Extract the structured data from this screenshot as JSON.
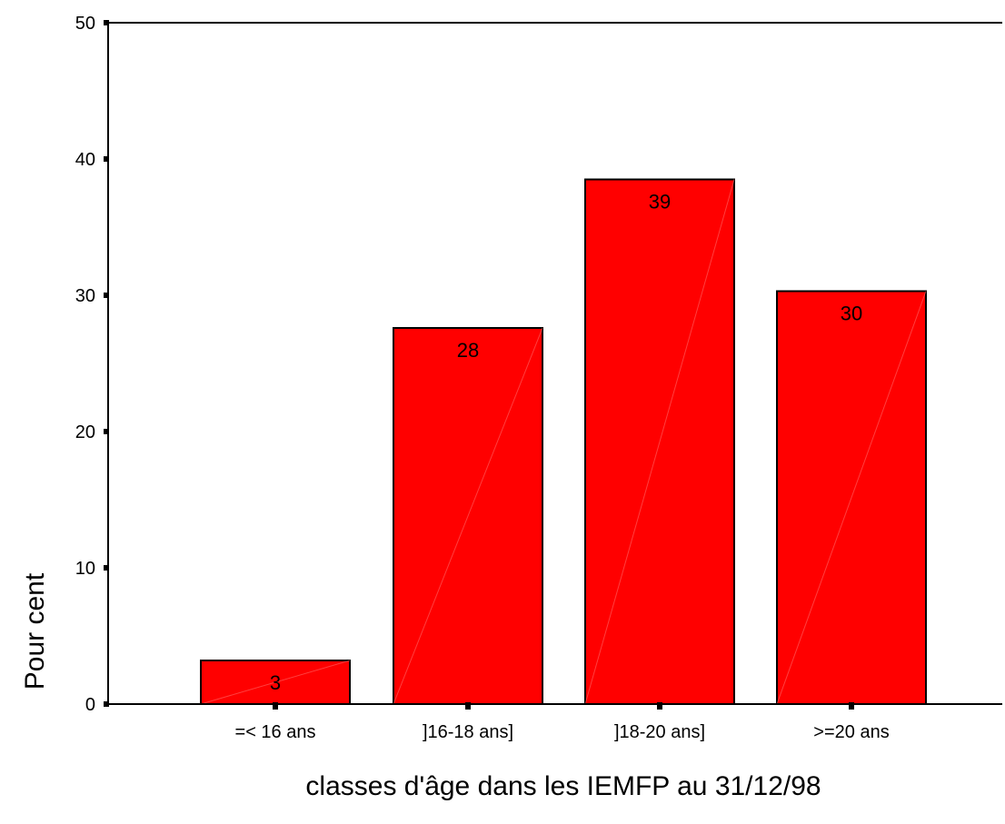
{
  "chart_data": {
    "type": "bar",
    "categories": [
      "=< 16 ans",
      "]16-18 ans]",
      "]18-20 ans]",
      ">=20 ans"
    ],
    "values": [
      3.2,
      27.6,
      38.5,
      30.3
    ],
    "data_labels": [
      "3",
      "28",
      "39",
      "30"
    ],
    "title": "",
    "xlabel": "classes d'âge dans les IEMFP au 31/12/98",
    "ylabel": "Pour cent",
    "ylim": [
      0,
      50
    ],
    "yticks": [
      "0",
      "10",
      "20",
      "30",
      "40",
      "50"
    ],
    "grid": false,
    "colors": {
      "bar": "#ff0000",
      "stroke": "#000000"
    }
  }
}
